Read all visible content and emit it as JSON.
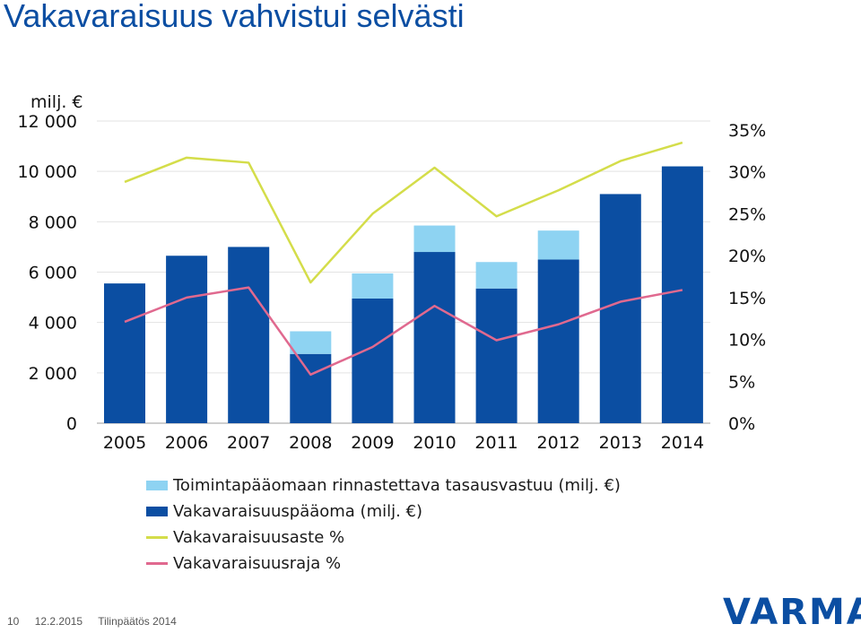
{
  "page": {
    "title": "Vakavaraisuus vahvistui selvästi"
  },
  "chart_data": {
    "type": "bar",
    "title": "",
    "ylabel": "milj. €",
    "categories": [
      "2005",
      "2006",
      "2007",
      "2008",
      "2009",
      "2010",
      "2011",
      "2012",
      "2013",
      "2014"
    ],
    "ylim": [
      0,
      12000
    ],
    "y_ticks": [
      "0",
      "2 000",
      "4 000",
      "6 000",
      "8 000",
      "10 000",
      "12 000"
    ],
    "y2lim": [
      0,
      0.35
    ],
    "y2_ticks": [
      "0%",
      "5%",
      "10%",
      "15%",
      "20%",
      "25%",
      "30%",
      "35%"
    ],
    "grid": true,
    "legend_position": "bottom",
    "series": [
      {
        "name": "Vakavaraisuuspääoma (milj. €)",
        "kind": "bar",
        "stack": "capital",
        "axis": "left",
        "color": "#0b4ea2",
        "values": [
          5550,
          6650,
          7000,
          2750,
          4950,
          6800,
          5350,
          6500,
          9100,
          10200
        ]
      },
      {
        "name": "Toimintapääomaan rinnastettava tasausvastuu (milj. €)",
        "kind": "bar",
        "stack": "capital",
        "axis": "right_none",
        "color": "#8ed3f2",
        "values": [
          0,
          0,
          0,
          900,
          1000,
          1050,
          1050,
          1150,
          0,
          0
        ]
      },
      {
        "name": "Vakavaraisuusaste %",
        "kind": "line",
        "axis": "right",
        "color": "#d4dd4a",
        "values": [
          0.288,
          0.317,
          0.311,
          0.168,
          0.25,
          0.305,
          0.247,
          0.278,
          0.313,
          0.335
        ]
      },
      {
        "name": "Vakavaraisuusraja %",
        "kind": "line",
        "axis": "right",
        "color": "#e0698f",
        "values": [
          0.121,
          0.15,
          0.162,
          0.058,
          0.091,
          0.14,
          0.099,
          0.118,
          0.145,
          0.159
        ]
      }
    ]
  },
  "legend": {
    "items": [
      {
        "label": "Toimintapääomaan rinnastettava tasausvastuu (milj. €)",
        "color": "#8ed3f2",
        "kind": "rect"
      },
      {
        "label": "Vakavaraisuuspääoma (milj. €)",
        "color": "#0b4ea2",
        "kind": "rect"
      },
      {
        "label": "Vakavaraisuusaste %",
        "color": "#d4dd4a",
        "kind": "line"
      },
      {
        "label": "Vakavaraisuusraja %",
        "color": "#e0698f",
        "kind": "line"
      }
    ]
  },
  "footer": {
    "page_number": "10",
    "date": "12.2.2015",
    "label": "Tilinpäätös 2014"
  },
  "logo": {
    "text": "VARMA",
    "color": "#0b4ea2"
  }
}
